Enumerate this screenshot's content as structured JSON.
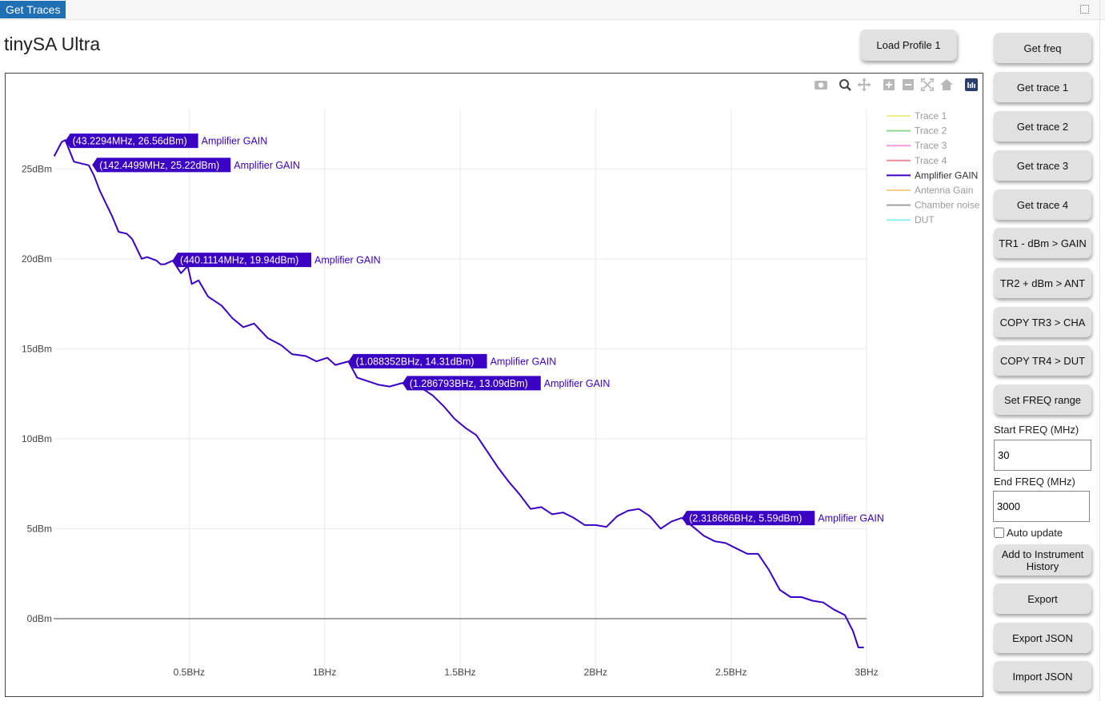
{
  "tab": {
    "label": "Get Traces"
  },
  "page": {
    "title": "tinySA Ultra"
  },
  "load_profile": {
    "label": "Load Profile 1"
  },
  "sidebar": {
    "buttons": [
      {
        "label": "Get freq"
      },
      {
        "label": "Get trace 1"
      },
      {
        "label": "Get trace 2"
      },
      {
        "label": "Get trace 3"
      },
      {
        "label": "Get trace 4"
      },
      {
        "label": "TR1 - dBm > GAIN"
      },
      {
        "label": "TR2 + dBm > ANT"
      },
      {
        "label": "COPY TR3 > CHA"
      },
      {
        "label": "COPY TR4 > DUT"
      },
      {
        "label": "Set FREQ range"
      }
    ],
    "start_freq": {
      "label": "Start FREQ (MHz)",
      "value": "30"
    },
    "end_freq": {
      "label": "End FREQ (MHz)",
      "value": "3000"
    },
    "auto_update": {
      "label": "Auto update",
      "checked": false
    },
    "bottom_buttons": [
      {
        "label": "Add to Instrument History"
      },
      {
        "label": "Export"
      },
      {
        "label": "Export JSON"
      },
      {
        "label": "Import JSON"
      }
    ]
  },
  "toolbar_icons": [
    "camera-icon",
    "zoom-icon",
    "pan-icon",
    "zoom-in-icon",
    "zoom-out-icon",
    "autoscale-icon",
    "reset-axes-icon",
    "plotly-logo-icon"
  ],
  "chart_data": {
    "type": "line",
    "xlim": [
      0,
      3000
    ],
    "ylim": [
      -2.8,
      28.3
    ],
    "x_ticks": [
      {
        "value": 500,
        "label": "0.5BHz"
      },
      {
        "value": 1000,
        "label": "1BHz"
      },
      {
        "value": 1500,
        "label": "1.5BHz"
      },
      {
        "value": 2000,
        "label": "2BHz"
      },
      {
        "value": 2500,
        "label": "2.5BHz"
      },
      {
        "value": 3000,
        "label": "3BHz"
      }
    ],
    "y_ticks": [
      {
        "value": 0,
        "label": "0dBm"
      },
      {
        "value": 5,
        "label": "5dBm"
      },
      {
        "value": 10,
        "label": "10dBm"
      },
      {
        "value": 15,
        "label": "15dBm"
      },
      {
        "value": 20,
        "label": "20dBm"
      },
      {
        "value": 25,
        "label": "25dBm"
      }
    ],
    "grid": true,
    "legend_position": "top-right",
    "legend": [
      {
        "name": "Trace 1",
        "color": "#f0f08a",
        "active": false
      },
      {
        "name": "Trace 2",
        "color": "#8fd88f",
        "active": false
      },
      {
        "name": "Trace 3",
        "color": "#f39be0",
        "active": false
      },
      {
        "name": "Trace 4",
        "color": "#f08a9a",
        "active": false
      },
      {
        "name": "Amplifier GAIN",
        "color": "#3a00c4",
        "active": true
      },
      {
        "name": "Antenna Gain",
        "color": "#f5cf8e",
        "active": false
      },
      {
        "name": "Chamber noise",
        "color": "#a0a0a0",
        "active": false
      },
      {
        "name": "DUT",
        "color": "#8ef1f1",
        "active": false
      }
    ],
    "series": [
      {
        "name": "Amplifier GAIN",
        "color": "#3a00c4",
        "x": [
          2,
          30,
          43,
          75,
          130,
          150,
          170,
          215,
          240,
          270,
          290,
          325,
          345,
          380,
          395,
          410,
          440,
          470,
          495,
          510,
          535,
          570,
          620,
          660,
          700,
          740,
          790,
          840,
          880,
          930,
          970,
          1010,
          1040,
          1088,
          1120,
          1160,
          1200,
          1240,
          1287,
          1320,
          1360,
          1400,
          1440,
          1480,
          1520,
          1560,
          1600,
          1640,
          1680,
          1720,
          1760,
          1800,
          1840,
          1880,
          1920,
          1960,
          2000,
          2040,
          2080,
          2120,
          2160,
          2200,
          2240,
          2280,
          2318,
          2360,
          2400,
          2440,
          2480,
          2520,
          2560,
          2600,
          2640,
          2680,
          2720,
          2760,
          2800,
          2840,
          2880,
          2920,
          2950,
          2970,
          2990
        ],
        "y": [
          25.7,
          26.5,
          26.6,
          25.4,
          25.2,
          24.6,
          23.8,
          22.4,
          21.5,
          21.4,
          21.1,
          20.0,
          20.1,
          19.9,
          19.7,
          19.7,
          19.9,
          19.2,
          19.6,
          18.6,
          18.8,
          17.9,
          17.4,
          16.7,
          16.2,
          16.4,
          15.6,
          15.2,
          14.7,
          14.6,
          14.3,
          14.5,
          14.1,
          14.3,
          13.4,
          13.2,
          13.0,
          12.9,
          13.1,
          12.8,
          12.8,
          12.4,
          11.8,
          11.1,
          10.6,
          10.2,
          9.3,
          8.4,
          7.6,
          6.9,
          6.1,
          6.2,
          5.8,
          5.9,
          5.6,
          5.2,
          5.2,
          5.1,
          5.7,
          6.0,
          6.1,
          5.7,
          5.0,
          5.4,
          5.6,
          5.1,
          4.6,
          4.3,
          4.2,
          3.9,
          3.6,
          3.6,
          2.7,
          1.6,
          1.2,
          1.2,
          1.0,
          0.9,
          0.5,
          0.2,
          -0.7,
          -1.6,
          -1.6
        ]
      }
    ],
    "annotations": [
      {
        "x": 43.2294,
        "y": 26.56,
        "label": "(43.2294MHz, 26.56dBm)",
        "series": "Amplifier GAIN"
      },
      {
        "x": 142.4499,
        "y": 25.22,
        "label": "(142.4499MHz, 25.22dBm)",
        "series": "Amplifier GAIN"
      },
      {
        "x": 440.1114,
        "y": 19.94,
        "label": "(440.1114MHz, 19.94dBm)",
        "series": "Amplifier GAIN"
      },
      {
        "x": 1088.352,
        "y": 14.31,
        "label": "(1.088352BHz, 14.31dBm)",
        "series": "Amplifier GAIN"
      },
      {
        "x": 1286.793,
        "y": 13.09,
        "label": "(1.286793BHz, 13.09dBm)",
        "series": "Amplifier GAIN"
      },
      {
        "x": 2318.686,
        "y": 5.59,
        "label": "(2.318686BHz, 5.59dBm)",
        "series": "Amplifier GAIN"
      }
    ]
  }
}
